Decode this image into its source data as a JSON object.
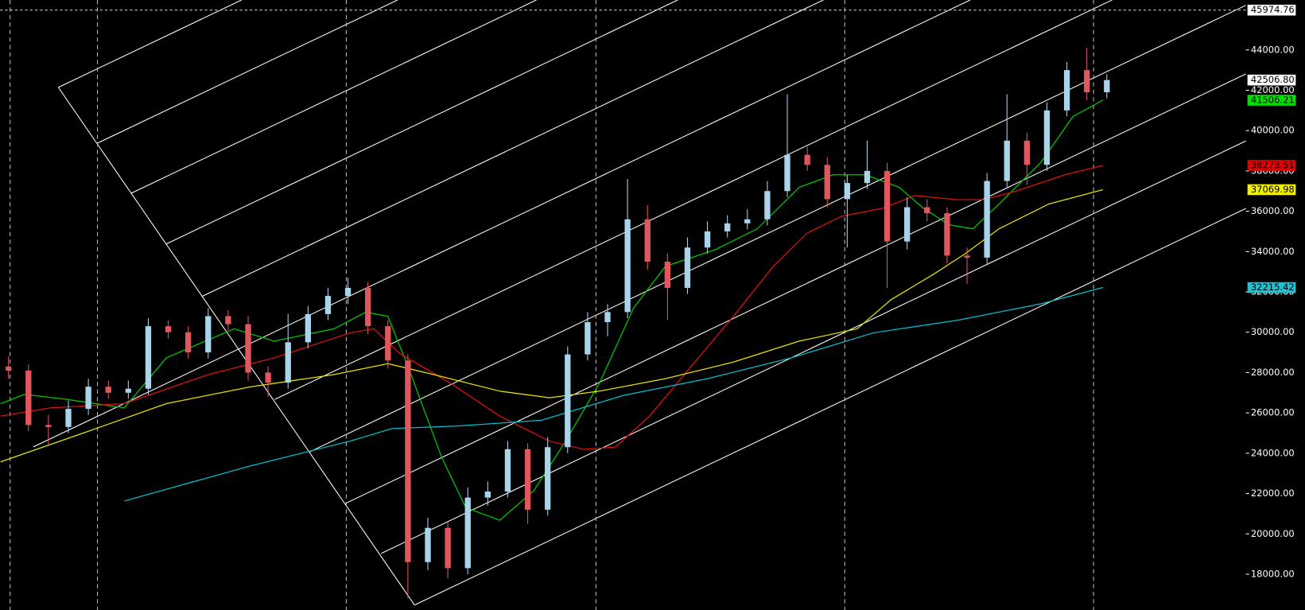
{
  "chart_data": {
    "type": "candlestick",
    "xlim": [
      -0.42,
      61.96
    ],
    "ylim": [
      16225,
      46476
    ],
    "yticks": [
      {
        "value": 18000,
        "label": "18000.00"
      },
      {
        "value": 20000,
        "label": "20000.00"
      },
      {
        "value": 22000,
        "label": "22000.00"
      },
      {
        "value": 24000,
        "label": "24000.00"
      },
      {
        "value": 26000,
        "label": "26000.00"
      },
      {
        "value": 28000,
        "label": "28000.00"
      },
      {
        "value": 30000,
        "label": "30000.00"
      },
      {
        "value": 32000,
        "label": "32000.00"
      },
      {
        "value": 34000,
        "label": "34000.00"
      },
      {
        "value": 36000,
        "label": "36000.00"
      },
      {
        "value": 38000,
        "label": "38000.00"
      },
      {
        "value": 40000,
        "label": "40000.00"
      },
      {
        "value": 42000,
        "label": "42000.00"
      },
      {
        "value": 44000,
        "label": "44000.00"
      }
    ],
    "up_color": "#a8d4ec",
    "down_color": "#e0585d",
    "x": [
      0,
      1,
      2,
      3,
      4,
      5,
      6,
      7,
      8,
      9,
      10,
      11,
      12,
      13,
      14,
      15,
      16,
      17,
      18,
      19,
      20,
      21,
      22,
      23,
      24,
      25,
      26,
      27,
      28,
      29,
      30,
      31,
      32,
      33,
      34,
      35,
      36,
      37,
      38,
      39,
      40,
      41,
      42,
      43,
      44,
      45,
      46,
      47,
      48,
      49,
      50,
      51,
      52,
      53,
      54,
      55
    ],
    "open": [
      28300,
      28100,
      25400,
      25300,
      26200,
      27300,
      27000,
      27200,
      30300,
      30000,
      29000,
      30800,
      30400,
      28000,
      27500,
      29500,
      30900,
      31800,
      32200,
      30300,
      28600,
      18600,
      20300,
      18300,
      21800,
      22100,
      24200,
      21200,
      24300,
      28900,
      30500,
      31000,
      35600,
      33500,
      32200,
      34200,
      35000,
      35400,
      35600,
      37000,
      38800,
      38300,
      36600,
      37400,
      38000,
      34500,
      36200,
      35900,
      33800,
      33700,
      37500,
      39500,
      38300,
      41000,
      43000,
      41900
    ],
    "high": [
      28800,
      28400,
      25900,
      26600,
      27700,
      27600,
      27600,
      30700,
      30600,
      30300,
      31200,
      31100,
      30800,
      28300,
      30900,
      31300,
      32200,
      32700,
      32500,
      30600,
      28900,
      20800,
      20600,
      22300,
      22600,
      24600,
      24500,
      24800,
      29300,
      31000,
      31400,
      37600,
      36300,
      33900,
      34700,
      35500,
      35800,
      36100,
      37500,
      41800,
      39200,
      38700,
      37800,
      39500,
      38400,
      36700,
      36600,
      36200,
      34200,
      37900,
      41800,
      39900,
      41400,
      43400,
      44100,
      42800
    ],
    "low": [
      27700,
      25100,
      24400,
      25000,
      25900,
      26700,
      26700,
      26900,
      29700,
      28700,
      28700,
      30100,
      27600,
      26800,
      27200,
      29200,
      30600,
      31400,
      29900,
      28200,
      16800,
      18200,
      17800,
      18000,
      21400,
      21800,
      20500,
      20900,
      24000,
      28600,
      29800,
      30700,
      33100,
      30600,
      31900,
      33900,
      34700,
      35100,
      35300,
      36700,
      38000,
      36200,
      34200,
      37100,
      32200,
      34100,
      35500,
      33400,
      32400,
      33400,
      37200,
      37300,
      38000,
      40700,
      41500,
      41600
    ],
    "close": [
      28100,
      25400,
      25300,
      26200,
      27300,
      27000,
      27200,
      30300,
      30000,
      29000,
      30800,
      30400,
      28000,
      27500,
      29500,
      30900,
      31800,
      32200,
      30300,
      28600,
      18600,
      20300,
      18300,
      21800,
      22100,
      24200,
      21200,
      24300,
      28900,
      30500,
      31000,
      35600,
      33500,
      32200,
      34200,
      35000,
      35400,
      35600,
      37000,
      38800,
      38300,
      36600,
      37400,
      38000,
      34500,
      36200,
      35900,
      33800,
      33700,
      37500,
      39500,
      38300,
      41000,
      43000,
      41900,
      42506.8
    ],
    "lines": [
      {
        "color": "#00c800",
        "x": [
          -0.4,
          0.8,
          2.9,
          5.8,
          7.9,
          11.3,
          13.3,
          16.3,
          17.9,
          19,
          20,
          21.7,
          22.9,
          24.6,
          26.3,
          27.9,
          29.6,
          31.3,
          32.9,
          35.4,
          37.5,
          39.6,
          41.3,
          42.9,
          44.6,
          45.8,
          47.1,
          48.3,
          49.6,
          51.7,
          53.3,
          54.8
        ],
        "values": [
          26460,
          26920,
          26670,
          26250,
          28730,
          30170,
          29560,
          30170,
          31000,
          30790,
          28320,
          23780,
          21300,
          20680,
          22130,
          24600,
          27490,
          31200,
          33270,
          34100,
          35130,
          37190,
          37810,
          37810,
          37190,
          36160,
          35330,
          35130,
          36360,
          38430,
          40700,
          41506.21
        ]
      },
      {
        "color": "#e01010",
        "x": [
          -0.4,
          2.1,
          5.8,
          10,
          13.3,
          17.1,
          18.3,
          19.6,
          22.1,
          24.6,
          27.1,
          28.8,
          30.4,
          32.1,
          34.2,
          36.3,
          38.3,
          40,
          41.7,
          43.8,
          45.4,
          47.5,
          48.8,
          50.4,
          52.9,
          54.8
        ],
        "values": [
          25840,
          26250,
          26460,
          27900,
          28730,
          29970,
          30170,
          28940,
          27490,
          25840,
          24600,
          24190,
          24310,
          25840,
          28320,
          30790,
          33270,
          34920,
          35750,
          36160,
          36780,
          36570,
          36570,
          36980,
          37810,
          38273.51
        ]
      },
      {
        "color": "#e8e000",
        "x": [
          -0.4,
          3.8,
          7.9,
          12.1,
          16.3,
          19,
          21.3,
          24.6,
          27.1,
          29.6,
          32.9,
          36.3,
          39.6,
          42.5,
          44.2,
          46.3,
          47.9,
          49.6,
          52.1,
          54.8
        ],
        "values": [
          23570,
          25020,
          26460,
          27290,
          27900,
          28440,
          27900,
          27080,
          26750,
          27080,
          27700,
          28520,
          29560,
          30170,
          31620,
          32860,
          33890,
          35130,
          36360,
          37069.98
        ]
      },
      {
        "color": "#00c0d0",
        "x": [
          5.8,
          12.1,
          17.1,
          19.2,
          22.5,
          26.7,
          30.8,
          35,
          39.2,
          43.3,
          47.5,
          51.7,
          54.8
        ],
        "values": [
          21630,
          23370,
          24600,
          25220,
          25350,
          25640,
          26870,
          27700,
          28730,
          29970,
          30590,
          31410,
          32215.42
        ]
      }
    ],
    "price_tags": [
      45974.76,
      {
        "value": 42506.8,
        "label": "42506.80"
      },
      41506.21,
      38273.51,
      37069.98,
      32215.42
    ],
    "price_tag_colors": [
      "#ffffff",
      "#ffffff",
      "#00e000",
      "#e00000",
      "#f0f000",
      "#20c0d0"
    ]
  }
}
